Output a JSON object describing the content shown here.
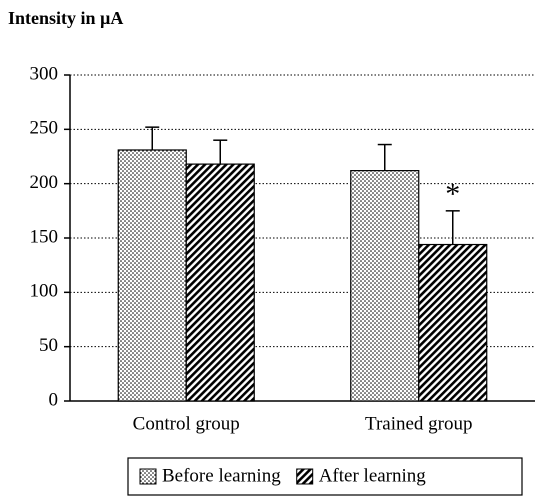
{
  "chart_data": {
    "type": "bar",
    "title": "Intensity in µA",
    "categories": [
      "Control group",
      "Trained group"
    ],
    "series": [
      {
        "name": "Before learning",
        "color": "#000000",
        "pattern": "dots",
        "values": [
          231,
          212
        ],
        "errors": [
          21,
          24
        ]
      },
      {
        "name": "After learning",
        "color": "#000000",
        "pattern": "hatch",
        "values": [
          218,
          144
        ],
        "errors": [
          22,
          31
        ]
      }
    ],
    "annotation": "*",
    "ylim": [
      0,
      300
    ],
    "yticks": [
      0,
      50,
      100,
      150,
      200,
      250,
      300
    ],
    "grid": true,
    "legend": "bottom"
  }
}
